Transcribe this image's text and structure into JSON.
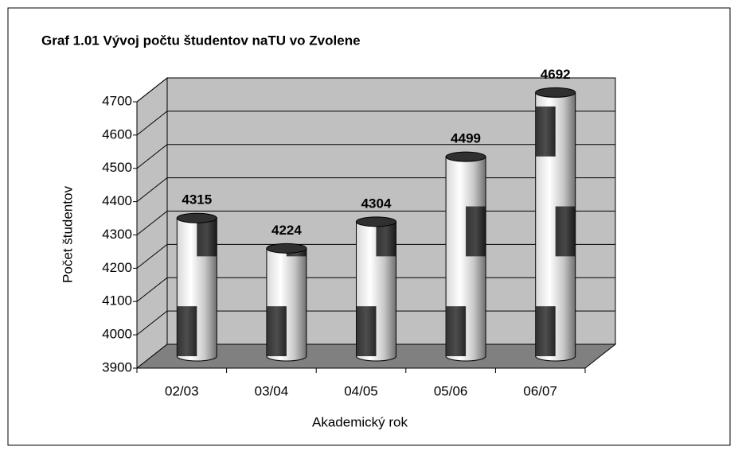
{
  "chart_data": {
    "type": "bar",
    "title": "Graf 1.01 Vývoj počtu študentov naTU vo Zvolene",
    "categories": [
      "02/03",
      "03/04",
      "04/05",
      "05/06",
      "06/07"
    ],
    "values": [
      4315,
      4224,
      4304,
      4499,
      4692
    ],
    "ylim": [
      3900,
      4700
    ],
    "yticks": [
      3900,
      4000,
      4100,
      4200,
      4300,
      4400,
      4500,
      4600,
      4700
    ],
    "x_label": "Akademický rok",
    "y_label": "Počet študentov",
    "grid": true,
    "color": "#c0c0c0"
  }
}
